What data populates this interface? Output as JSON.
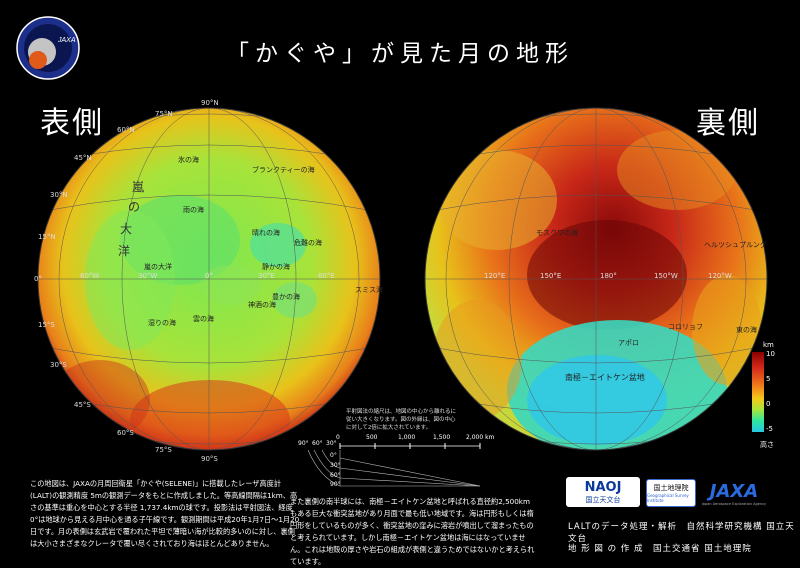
{
  "title": "「かぐや」が見た月の地形",
  "near_label": "表側",
  "far_label": "裏側",
  "emblem_text": "JAXA",
  "lat_labels": [
    "90°N",
    "75°N",
    "60°N",
    "45°N",
    "30°N",
    "15°N",
    "0°",
    "15°S",
    "30°S",
    "45°S",
    "60°S",
    "75°S",
    "90°S"
  ],
  "lon_labels": {
    "near": [
      "60°W",
      "30°W",
      "0°",
      "30°E",
      "60°E"
    ],
    "far": [
      "120°E",
      "150°E",
      "180°",
      "150°W",
      "120°W"
    ]
  },
  "near_regions": [
    "雨の海",
    "晴れの海",
    "静かの海",
    "嵐の大洋",
    "豊かの海",
    "危難の海",
    "雲の海",
    "湿りの海",
    "神酒の海",
    "氷の海",
    "ブランクティーの海",
    "スミス海"
  ],
  "near_kanji": [
    "嵐",
    "の",
    "大",
    "洋"
  ],
  "far_regions": [
    "南極－エイトケン盆地",
    "東の海",
    "モスクワの海",
    "アポロ",
    "コロリョフ",
    "ヘルツシュプルング"
  ],
  "colorbar": {
    "title": "km",
    "labels": [
      "10",
      "5",
      "0",
      "-5"
    ],
    "caption": "高さ",
    "colors": [
      "#8b0000",
      "#d42a1a",
      "#f07a1a",
      "#f5c81a",
      "#a8e63a",
      "#2ee8a0",
      "#27c8e0"
    ]
  },
  "scale": {
    "note": "平射図法の縮尺は、地図の中心から離れるに従い大きくなります。図の外縁は、図の中心に対して2倍に拡大されています。",
    "ticks": [
      "0",
      "500",
      "1,000",
      "1,500",
      "2,000 km"
    ],
    "lat_ticks": [
      "90°",
      "60°",
      "30°",
      "0°",
      "30°",
      "60°",
      "90°"
    ]
  },
  "note_left": "この地図は、JAXAの月周回衛星「かぐや(SELENE)」に搭載したレーザ高度計(LALT)の観測精度 5mの観測データをもとに作成しました。等高線間隔は1km、高さの基準は重心を中心とする半径 1,737.4kmの球です。投影法は平射図法、経度0°は地球から見える月中心を通る子午線です。観測期間は平成20年1月7日～1月20日です。月の表側は玄武岩で覆われた平坦で薄暗い海が比較的多いのに対し、裏側は大小さまざまなクレータで覆い尽くされており海はほとんどありません。",
  "note_mid": "また裏側の南半球には、南極－エイトケン盆地と呼ばれる直径約2,500km もある巨大な衝突盆地があり月面で最も低い地域です。海は円形もしくは楕円形をしているものが多く、衝突盆地の窪みに溶岩が噴出して溜まったものと考えられています。しかし南極－エイトケン盆地は海にはなっていません。これは地殻の厚さや岩石の組成が表側と違うためではないかと考えられています。",
  "logos": {
    "naoj": "NAOJ",
    "naoj_sub": "国立天文台",
    "gsi": "国土地理院",
    "gsi_sub": "Geographical Survey Institute",
    "jaxa": "JAXA",
    "jaxa_sub": "Japan Aerospace Exploration Agency"
  },
  "credit_1": "LALTのデータ処理・解析　自然科学研究機構 国立天文台",
  "credit_2": "地 形 図 の 作 成　国土交通省 国土地理院"
}
